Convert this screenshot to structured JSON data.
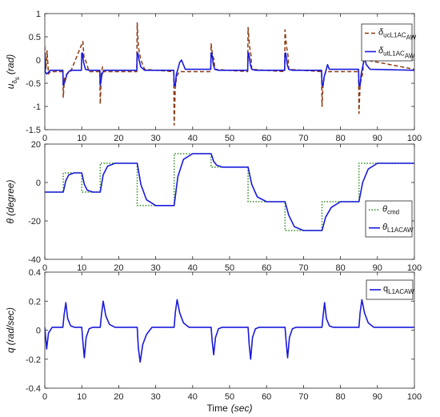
{
  "chart_data": [
    {
      "type": "line",
      "ylabel_main": "u",
      "ylabel_sub": "δ",
      "ylabel_subsub": "s",
      "ylabel_unit": "(rad)",
      "xlim": [
        0,
        100
      ],
      "ylim": [
        -1.5,
        1
      ],
      "xticks": [
        "0",
        "10",
        "20",
        "30",
        "40",
        "50",
        "60",
        "70",
        "80",
        "90",
        "100"
      ],
      "yticks": [
        "-1.5",
        "-1",
        "-0.5",
        "0",
        "0.5",
        "1"
      ],
      "legend_position": "top-right",
      "series": [
        {
          "name_main": "δ",
          "name_sub": "uc",
          "name_subsub": "L1AC",
          "name_subsubsub": "AW",
          "color": "#8b3a10",
          "style": "dashed",
          "x": [
            0,
            0.3,
            0.6,
            1,
            1.5,
            2,
            4.9,
            5,
            5.3,
            5.6,
            6,
            7,
            10.3,
            10.6,
            11,
            12,
            14.9,
            15,
            15.3,
            15.6,
            16,
            24.9,
            25,
            25.3,
            25.6,
            26,
            27,
            34.9,
            35,
            35.3,
            35.6,
            36,
            36.5,
            44.9,
            45,
            45.4,
            45.8,
            46,
            54.9,
            55,
            55.4,
            55.8,
            56,
            64.9,
            65,
            65.4,
            65.8,
            66,
            74.9,
            75,
            75.3,
            75.6,
            76,
            84.9,
            85,
            85.3,
            85.6,
            86,
            86.5,
            87,
            100
          ],
          "y": [
            0.3,
            -0.2,
            0.2,
            -0.3,
            -0.25,
            -0.25,
            -0.25,
            -0.8,
            -0.4,
            -0.35,
            -0.3,
            -0.25,
            0.4,
            0.05,
            0,
            -0.25,
            -0.25,
            -0.95,
            -0.3,
            -0.15,
            -0.25,
            -0.25,
            0.8,
            0.3,
            0.15,
            0,
            -0.2,
            -0.25,
            -1.4,
            -0.6,
            -0.4,
            -0.3,
            -0.25,
            -0.25,
            0.35,
            0.1,
            0,
            -0.2,
            -0.25,
            0.7,
            0.3,
            0.1,
            -0.2,
            -0.25,
            0.65,
            0.3,
            0.1,
            -0.2,
            -0.25,
            -1.0,
            -0.5,
            -0.35,
            -0.25,
            -0.25,
            -1.15,
            -0.55,
            -0.4,
            -0.3,
            0.2,
            0,
            -0.2
          ]
        },
        {
          "name_main": "δ",
          "name_sub": "ut",
          "name_subsub": "L1AC",
          "name_subsubsub": "AW",
          "color": "#1a1adb",
          "style": "solid",
          "x": [
            0,
            0.1,
            0.5,
            1.5,
            3,
            4.9,
            5,
            5.5,
            6,
            6.5,
            7,
            9.9,
            10,
            10.2,
            10.5,
            11,
            12,
            14.9,
            15,
            15.5,
            16,
            17,
            20,
            24.9,
            25,
            25.2,
            25.5,
            26,
            27,
            30,
            34.9,
            35,
            35.3,
            35.6,
            36,
            36.5,
            37,
            38,
            44.9,
            45,
            45.2,
            45.6,
            46,
            47,
            54.9,
            55,
            55.2,
            55.6,
            56,
            57,
            64.9,
            65,
            65.2,
            65.6,
            66,
            67,
            74.9,
            75,
            75.3,
            75.6,
            76,
            76.5,
            77,
            84.9,
            85,
            85.3,
            85.6,
            86,
            86.5,
            87,
            88,
            100
          ],
          "y": [
            0.15,
            -0.25,
            -0.3,
            -0.22,
            -0.22,
            -0.22,
            -0.55,
            -0.45,
            -0.3,
            -0.25,
            -0.22,
            -0.22,
            0.15,
            0.15,
            -0.05,
            -0.2,
            -0.22,
            -0.22,
            -0.55,
            -0.3,
            -0.22,
            -0.22,
            -0.22,
            -0.22,
            0.15,
            0.15,
            0,
            -0.15,
            -0.22,
            -0.22,
            -0.22,
            -0.55,
            -0.55,
            -0.3,
            -0.2,
            -0.05,
            0,
            -0.2,
            -0.2,
            0.15,
            0.15,
            -0.1,
            -0.2,
            -0.22,
            -0.22,
            0.15,
            0.15,
            -0.1,
            -0.2,
            -0.22,
            -0.22,
            0.15,
            0.15,
            -0.1,
            -0.2,
            -0.22,
            -0.22,
            -0.55,
            -0.55,
            -0.35,
            -0.25,
            -0.1,
            -0.2,
            -0.2,
            -0.55,
            -0.55,
            -0.3,
            -0.15,
            0.05,
            -0.1,
            -0.2,
            -0.22
          ]
        }
      ]
    },
    {
      "type": "line",
      "ylabel_main": "θ",
      "ylabel_unit": "(degree)",
      "xlim": [
        0,
        100
      ],
      "ylim": [
        -40,
        20
      ],
      "xticks": [
        "0",
        "10",
        "20",
        "30",
        "40",
        "50",
        "60",
        "70",
        "80",
        "90",
        "100"
      ],
      "yticks": [
        "-40",
        "-20",
        "0",
        "20"
      ],
      "legend_position": "bottom-right",
      "series": [
        {
          "name_main": "θ",
          "name_sub": "cmd",
          "color": "#2e8b1e",
          "style": "dotted",
          "x": [
            0,
            5,
            5,
            10,
            10,
            15,
            15,
            25,
            25,
            35,
            35,
            45,
            45,
            55,
            55,
            65,
            65,
            75,
            75,
            85,
            85,
            100
          ],
          "y": [
            -5,
            -5,
            5,
            5,
            -5,
            -5,
            10,
            10,
            -12,
            -12,
            15,
            15,
            8,
            8,
            -10,
            -10,
            -25,
            -25,
            -10,
            -10,
            10,
            10
          ]
        },
        {
          "name_main": "θ",
          "name_sub": "L1AC",
          "name_subsub": "AW",
          "color": "#1a1adb",
          "style": "solid",
          "x": [
            0,
            5,
            5.7,
            6.5,
            8,
            10,
            10.7,
            11.5,
            13,
            15,
            15.8,
            17,
            19,
            25,
            26,
            27.5,
            30,
            35,
            36,
            37.5,
            40,
            45,
            45.7,
            46.5,
            48,
            55,
            56,
            57.5,
            60,
            65,
            66,
            67.5,
            70,
            75,
            76,
            77.5,
            80,
            85,
            86,
            87.5,
            90,
            100
          ],
          "y": [
            -5,
            -5,
            1,
            4,
            5,
            5,
            -1,
            -4,
            -5,
            -5,
            4,
            8.5,
            10,
            10,
            -1,
            -9,
            -12,
            -12,
            3,
            12,
            15,
            15,
            11,
            9,
            8,
            8,
            -1,
            -7.5,
            -10,
            -10,
            -17,
            -23,
            -25,
            -25,
            -18,
            -13,
            -10,
            -10,
            0,
            7,
            10,
            10
          ]
        }
      ]
    },
    {
      "type": "line",
      "ylabel_main": "q",
      "ylabel_unit": "(rad/sec)",
      "xlabel_main": "Time",
      "xlabel_unit": "(sec)",
      "xlim": [
        0,
        100
      ],
      "ylim": [
        -0.4,
        0.4
      ],
      "xticks": [
        "0",
        "10",
        "20",
        "30",
        "40",
        "50",
        "60",
        "70",
        "80",
        "90",
        "100"
      ],
      "yticks": [
        "-0.4",
        "-0.2",
        "0",
        "0.2",
        "0.4"
      ],
      "legend_position": "top-right",
      "series": [
        {
          "name_main": "q",
          "name_sub": "L1AC",
          "name_subsub": "AW",
          "color": "#1a1adb",
          "style": "solid",
          "x": [
            0,
            0.5,
            1,
            2,
            4.9,
            5.2,
            5.7,
            6.2,
            7,
            8,
            10,
            10.3,
            10.7,
            11.2,
            12,
            13,
            15,
            15.3,
            15.8,
            16.5,
            17.5,
            19,
            25,
            25.3,
            25.8,
            26.5,
            27.5,
            29,
            35,
            35.3,
            35.8,
            36.5,
            37.5,
            39,
            45,
            45.3,
            45.7,
            46.2,
            47,
            48,
            55,
            55.3,
            55.7,
            56.2,
            57,
            58,
            65,
            65.3,
            65.7,
            66.2,
            67,
            68,
            75,
            75.3,
            75.7,
            76.2,
            77,
            78,
            85,
            85.3,
            85.8,
            86.5,
            87.5,
            89,
            100
          ],
          "y": [
            0.02,
            -0.13,
            -0.02,
            0.02,
            0.02,
            0.1,
            0.19,
            0.08,
            0.03,
            0.02,
            0.02,
            -0.08,
            -0.19,
            -0.05,
            0.01,
            0.02,
            0.02,
            0.1,
            0.2,
            0.1,
            0.04,
            0.02,
            0.02,
            -0.12,
            -0.22,
            -0.1,
            -0.03,
            0.02,
            0.02,
            0.12,
            0.21,
            0.12,
            0.05,
            0.02,
            0.02,
            -0.08,
            -0.17,
            -0.05,
            0.01,
            0.02,
            0.02,
            -0.1,
            -0.2,
            -0.05,
            0.01,
            0.02,
            0.02,
            -0.08,
            -0.19,
            -0.05,
            0.01,
            0.02,
            0.02,
            0.1,
            0.19,
            0.08,
            0.03,
            0.02,
            0.02,
            0.12,
            0.21,
            0.12,
            0.05,
            0.02,
            0.02
          ]
        }
      ]
    }
  ]
}
